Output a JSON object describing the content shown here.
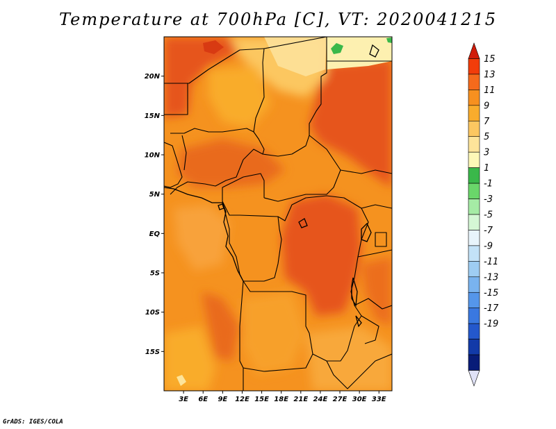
{
  "title": "Temperature at 700hPa [C], VT: 2020041215",
  "footer": "GrADS: IGES/COLA",
  "chart_data": {
    "type": "heatmap",
    "variable": "Temperature",
    "level": "700hPa",
    "units": "C",
    "valid_time": "2020041215",
    "lon_range": [
      0,
      35
    ],
    "lat_range": [
      -20,
      25
    ],
    "x_ticks": [
      "3E",
      "6E",
      "9E",
      "12E",
      "15E",
      "18E",
      "21E",
      "24E",
      "27E",
      "30E",
      "33E"
    ],
    "x_tick_values": [
      3,
      6,
      9,
      12,
      15,
      18,
      21,
      24,
      27,
      30,
      33
    ],
    "y_ticks": [
      "20N",
      "15N",
      "10N",
      "5N",
      "EQ",
      "5S",
      "10S",
      "15S"
    ],
    "y_tick_values": [
      20,
      15,
      10,
      5,
      0,
      -5,
      -10,
      -15
    ],
    "colorbar": {
      "levels": [
        15,
        13,
        11,
        9,
        7,
        5,
        3,
        1,
        -1,
        -3,
        -5,
        -7,
        -9,
        -11,
        -13,
        -15,
        -17,
        -19
      ],
      "colors_top_to_bottom": [
        "#d01c0a",
        "#f23d0a",
        "#f56a1c",
        "#f7901f",
        "#f9ac2c",
        "#fcc761",
        "#fde49a",
        "#fdf8b8",
        "#3ab84a",
        "#6ad66a",
        "#a5eba5",
        "#d5f7d5",
        "#e8f4fb",
        "#c3e2f7",
        "#9ecdf3",
        "#79b3ef",
        "#5596ea",
        "#3a78e0",
        "#2458cc",
        "#123aa8",
        "#081c78",
        "#e0e2f7"
      ],
      "extend": "both"
    }
  },
  "colors": {
    "warm_red": "#e6541a",
    "orange": "#f5921f",
    "light_orange": "#f8b13a",
    "yellow": "#fcd47a",
    "pale_yellow": "#fdeea8",
    "green": "#3ab84a"
  }
}
